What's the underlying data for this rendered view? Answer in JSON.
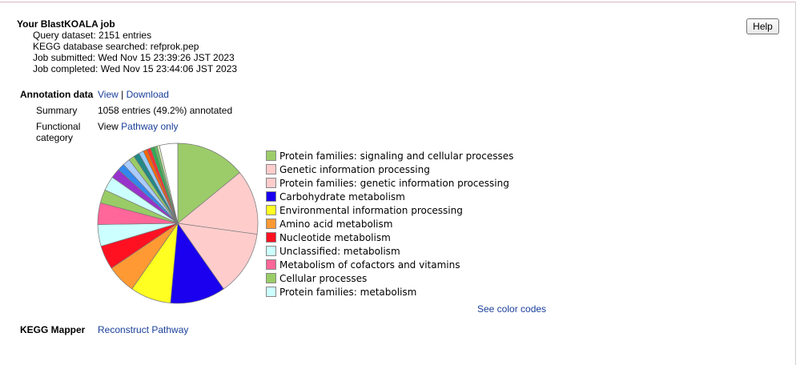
{
  "job": {
    "title": "Your BlastKOALA job",
    "lines": [
      "Query dataset: 2151 entries",
      "KEGG database searched: refprok.pep",
      "Job submitted: Wed Nov 15 23:39:26 JST 2023",
      "Job completed: Wed Nov 15 23:44:06 JST 2023"
    ]
  },
  "help_label": "Help",
  "annotation": {
    "label": "Annotation data",
    "view": "View",
    "sep": "|",
    "download": "Download"
  },
  "summary": {
    "label": "Summary",
    "value": "1058 entries (49.2%) annotated"
  },
  "functional": {
    "label_line1": "Functional",
    "label_line2": "category",
    "view_text": "View",
    "pathway_only": "Pathway only"
  },
  "legend": [
    {
      "label": "Protein families: signaling and cellular processes",
      "color": "#9ccc6a"
    },
    {
      "label": "Genetic information processing",
      "color": "#ffcccc"
    },
    {
      "label": "Protein families: genetic information processing",
      "color": "#ffcccc"
    },
    {
      "label": "Carbohydrate metabolism",
      "color": "#1a00ee"
    },
    {
      "label": "Environmental information processing",
      "color": "#ffff22"
    },
    {
      "label": "Amino acid metabolism",
      "color": "#ff9933"
    },
    {
      "label": "Nucleotide metabolism",
      "color": "#ff1122"
    },
    {
      "label": "Unclassified: metabolism",
      "color": "#ccffff"
    },
    {
      "label": "Metabolism of cofactors and vitamins",
      "color": "#ff6699"
    },
    {
      "label": "Cellular processes",
      "color": "#99cc66"
    },
    {
      "label": "Protein families: metabolism",
      "color": "#ccffff"
    }
  ],
  "see_color_codes": "See color codes",
  "mapper": {
    "label": "KEGG Mapper",
    "link": "Reconstruct Pathway"
  },
  "pie_slices": [
    {
      "pct": 14.5,
      "color": "#9ccc6a"
    },
    {
      "pct": 13.5,
      "color": "#ffcccc"
    },
    {
      "pct": 13.5,
      "color": "#ffcccc"
    },
    {
      "pct": 11.5,
      "color": "#1a00ee"
    },
    {
      "pct": 8.5,
      "color": "#ffff22"
    },
    {
      "pct": 6.0,
      "color": "#ff9933"
    },
    {
      "pct": 5.0,
      "color": "#ff1122"
    },
    {
      "pct": 4.5,
      "color": "#ccffff"
    },
    {
      "pct": 4.5,
      "color": "#ff6699"
    },
    {
      "pct": 2.8,
      "color": "#99cc66"
    },
    {
      "pct": 3.0,
      "color": "#ccffff"
    },
    {
      "pct": 2.0,
      "color": "#9933cc"
    },
    {
      "pct": 1.5,
      "color": "#3388ee"
    },
    {
      "pct": 1.5,
      "color": "#aaccff"
    },
    {
      "pct": 1.2,
      "color": "#99cc66"
    },
    {
      "pct": 1.2,
      "color": "#228888"
    },
    {
      "pct": 1.0,
      "color": "#99ccff"
    },
    {
      "pct": 0.8,
      "color": "#ff6600"
    },
    {
      "pct": 0.8,
      "color": "#ff3333"
    },
    {
      "pct": 0.8,
      "color": "#33aa55"
    },
    {
      "pct": 0.6,
      "color": "#66bb66"
    },
    {
      "pct": 0.5,
      "color": "#ddeebb"
    },
    {
      "pct": 3.8,
      "color": "#ffffff"
    }
  ]
}
